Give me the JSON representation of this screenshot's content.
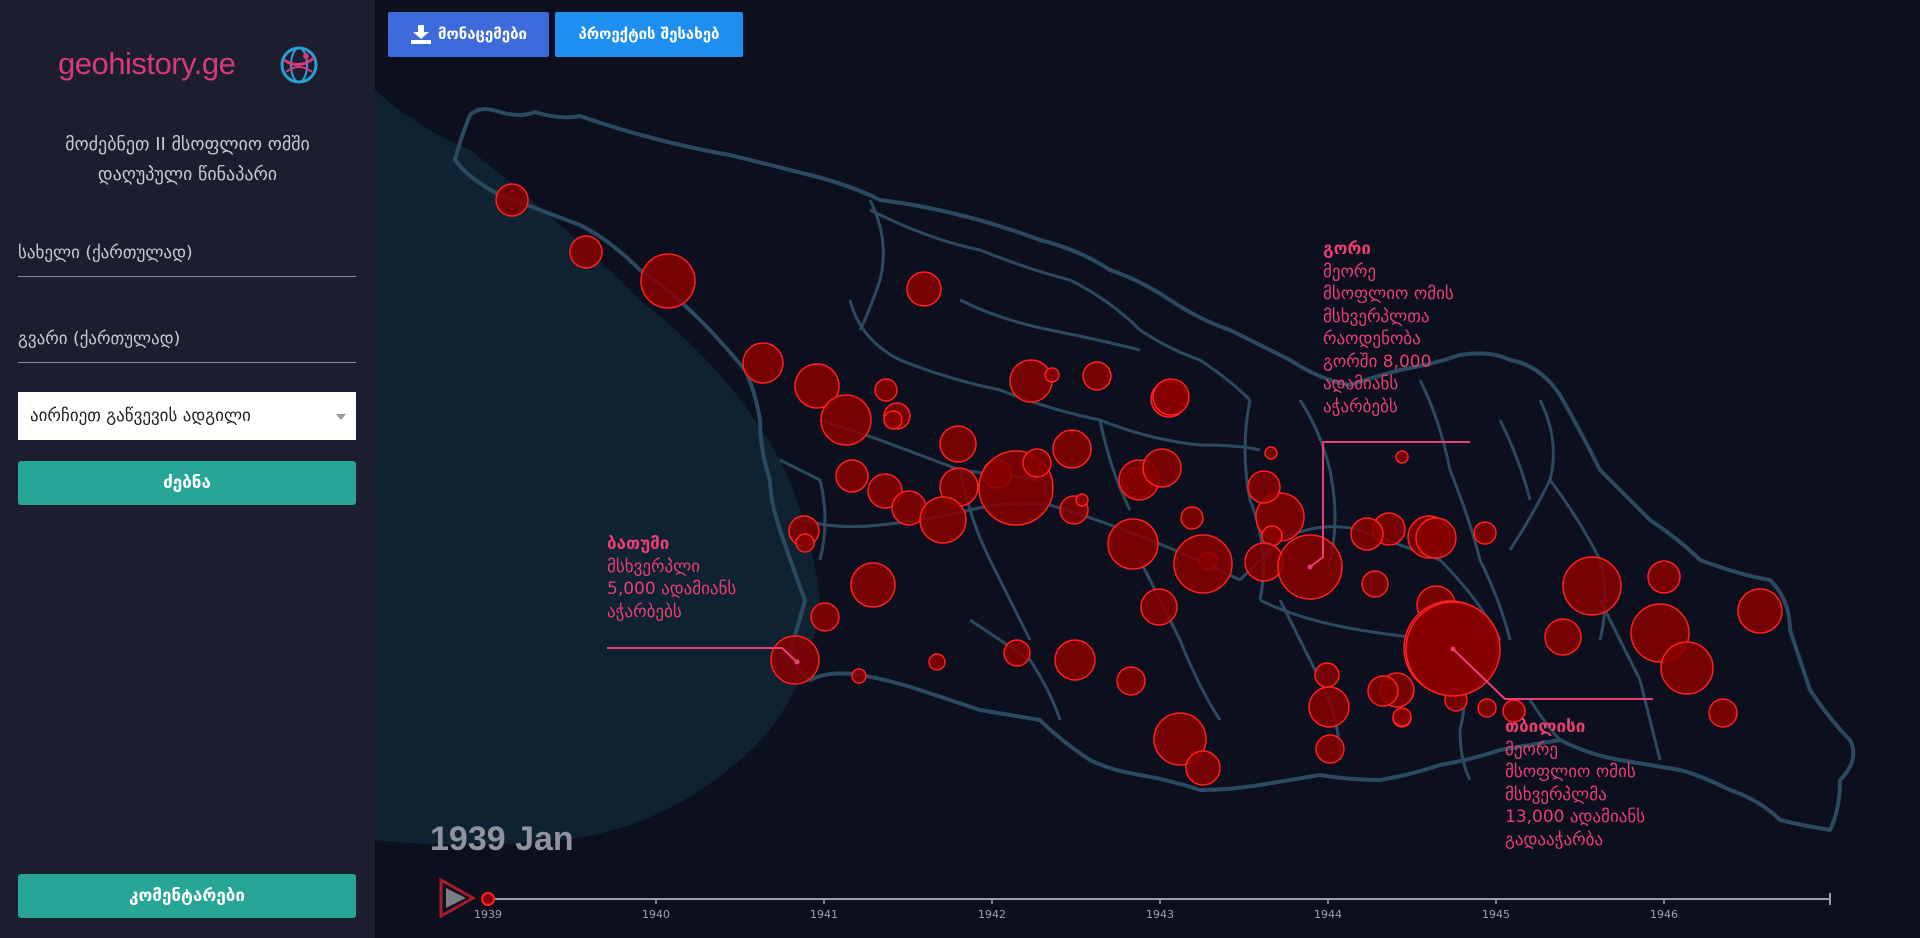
{
  "logo": {
    "text": "geohistory.ge"
  },
  "sidebar": {
    "heading_line1": "მოძებნეთ II მსოფლიო ომში",
    "heading_line2": "დაღუპული წინაპარი",
    "name_placeholder": "სახელი (ქართულად)",
    "surname_placeholder": "გვარი (ქართულად)",
    "place_select": "აირჩიეთ გაწვევის ადგილი",
    "search_button": "ძებნა",
    "comments_button": "კომენტარები"
  },
  "toolbar": {
    "data_button": "მონაცემები",
    "about_button": "პროექტის შესახებ"
  },
  "annotations": {
    "batumi": {
      "title": "ბათუმი",
      "line1": "მსხვერპლი",
      "line2": "5,000 ადამიანს",
      "line3": "აჭარბებს"
    },
    "gori": {
      "title": "გორი",
      "line1": "მეორე",
      "line2": "მსოფლიო ომის",
      "line3": "მსხვერპლთა",
      "line4": "რაოდენობა",
      "line5": "გორში 8,000",
      "line6": "ადამიანს",
      "line7": "აჭარბებს"
    },
    "tbilisi": {
      "title": "თბილისი",
      "line1": "მეორე",
      "line2": "მსოფლიო ომის",
      "line3": "მსხვერპლმა",
      "line4": "13,000 ადამიანს",
      "line5": "გადააჭარბა"
    }
  },
  "timeline": {
    "current": "1939 Jan",
    "ticks": [
      "1939",
      "1940",
      "1941",
      "1942",
      "1943",
      "1944",
      "1945",
      "1946"
    ]
  },
  "colors": {
    "sidebar_bg": "#1c1d2e",
    "map_bg": "#0b0f1e",
    "sea": "#0e2232",
    "border": "#2c4a5f",
    "circle_fill": "#8a0000",
    "circle_stroke": "#ff2020",
    "accent": "#ea3f73",
    "teal": "#27a596"
  },
  "icons": [
    "download-icon",
    "play-icon",
    "globe-logo-icon",
    "chevron-down-icon"
  ]
}
